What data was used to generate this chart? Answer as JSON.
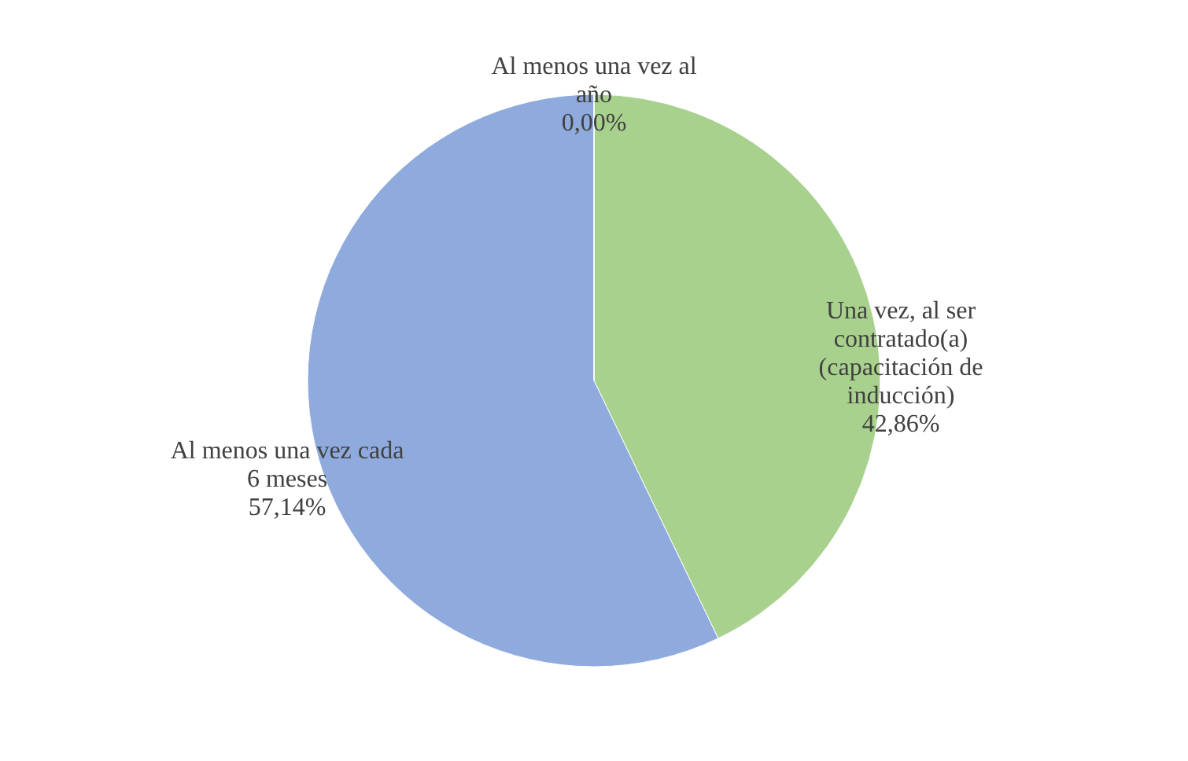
{
  "chart_data": {
    "type": "pie",
    "categories": [
      "Una vez, al ser contratado(a) (capacitación de inducción)",
      "Al menos una vez cada 6 meses",
      "Al menos una vez al año"
    ],
    "values": [
      42.86,
      57.14,
      0.0
    ],
    "colors": [
      "#a9d18e",
      "#8faadc",
      "#ffc000"
    ],
    "value_labels": [
      "42,86%",
      "57,14%",
      "0,00%"
    ]
  }
}
